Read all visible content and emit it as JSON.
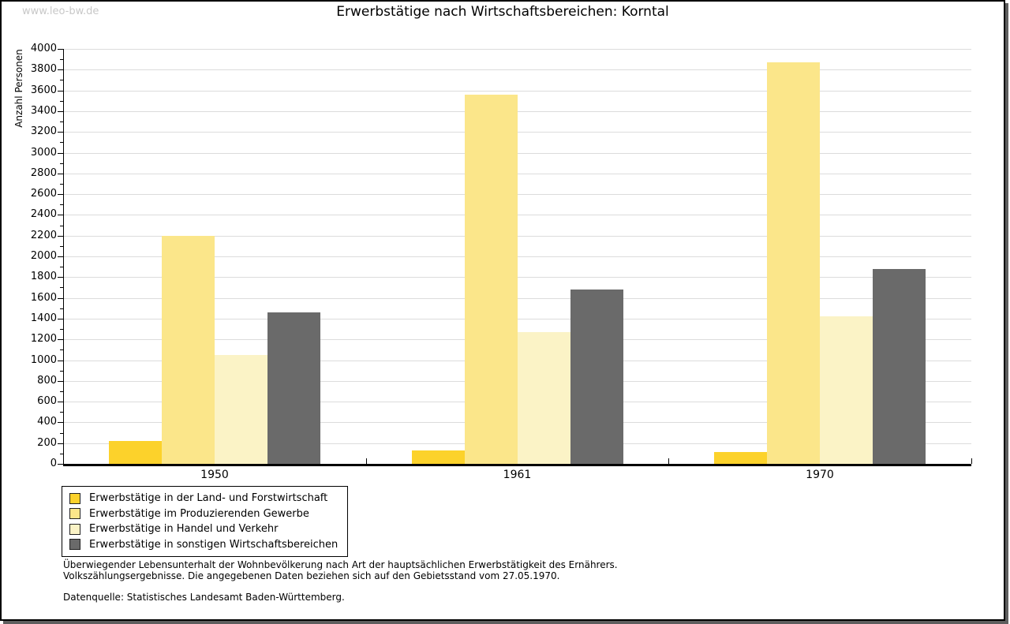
{
  "page": {
    "watermark": "www.leo-bw.de",
    "title": "Erwerbstätige nach Wirtschaftsbereichen: Korntal"
  },
  "chart_data": {
    "type": "bar",
    "title": "Erwerbstätige nach Wirtschaftsbereichen: Korntal",
    "xlabel": "",
    "ylabel": "Anzahl Personen",
    "ylim": [
      0,
      4000
    ],
    "ytick_major_step": 200,
    "ytick_minor_step": 100,
    "grid": true,
    "legend_position": "bottom-left",
    "categories": [
      "1950",
      "1961",
      "1970"
    ],
    "series": [
      {
        "name": "Erwerbstätige in der Land- und Forstwirtschaft",
        "color": "#FCD22B",
        "values": [
          220,
          130,
          115
        ]
      },
      {
        "name": "Erwerbstätige im Produzierenden Gewerbe",
        "color": "#FBE68A",
        "values": [
          2200,
          3560,
          3870
        ]
      },
      {
        "name": "Erwerbstätige in Handel und Verkehr",
        "color": "#FBF3C6",
        "values": [
          1050,
          1270,
          1420
        ]
      },
      {
        "name": "Erwerbstätige in sonstigen Wirtschaftsbereichen",
        "color": "#6A6A6A",
        "values": [
          1460,
          1680,
          1880
        ]
      }
    ]
  },
  "footnotes": {
    "line1": "Überwiegender Lebensunterhalt der Wohnbevölkerung nach Art der hauptsächlichen Erwerbstätigkeit des Ernährers.",
    "line2": "Volkszählungsergebnisse. Die angegebenen Daten beziehen sich auf den Gebietsstand vom 27.05.1970.",
    "source": "Datenquelle: Statistisches Landesamt Baden-Württemberg."
  },
  "colors": {
    "grid": "#DCDCDC",
    "axis": "#000000",
    "watermark": "#C8C8C8",
    "frame_shadow": "#5E5E5E"
  }
}
